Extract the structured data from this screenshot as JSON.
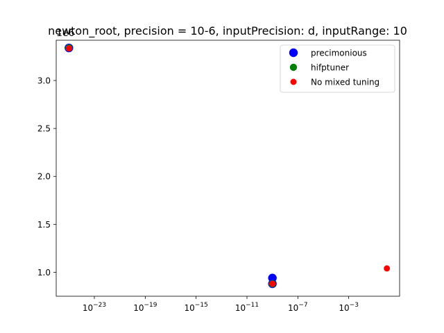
{
  "chart_data": {
    "type": "scatter",
    "title": "newton_root, precision = 10-6, inputPrecision: d, inputRange: 10",
    "xlabel": "",
    "ylabel": "",
    "x_scale": "log",
    "y_offset_label": "1e6",
    "xlim": [
      1e-26,
      10.0
    ],
    "ylim": [
      750000,
      3420000
    ],
    "x_ticks": [
      {
        "value": 1e-23,
        "base": "10",
        "exp": "−23"
      },
      {
        "value": 1e-19,
        "base": "10",
        "exp": "−19"
      },
      {
        "value": 1e-15,
        "base": "10",
        "exp": "−15"
      },
      {
        "value": 1e-11,
        "base": "10",
        "exp": "−11"
      },
      {
        "value": 1e-07,
        "base": "10",
        "exp": "−7"
      },
      {
        "value": 0.001,
        "base": "10",
        "exp": "−3"
      }
    ],
    "y_ticks": [
      {
        "value": 1000000,
        "label": "1.0"
      },
      {
        "value": 1500000,
        "label": "1.5"
      },
      {
        "value": 2000000,
        "label": "2.0"
      },
      {
        "value": 2500000,
        "label": "2.5"
      },
      {
        "value": 3000000,
        "label": "3.0"
      }
    ],
    "series": [
      {
        "name": "precimonious",
        "color": "#0000ff",
        "marker_size": 6.2,
        "points": [
          {
            "x": 1e-25,
            "y": 3340000
          },
          {
            "x": 1e-09,
            "y": 940000
          },
          {
            "x": 1e-09,
            "y": 880000
          }
        ]
      },
      {
        "name": "hifptuner",
        "color": "#008000",
        "marker_size": 5.2,
        "points": [
          {
            "x": 1e-25,
            "y": 3340000
          },
          {
            "x": 1e-09,
            "y": 880000
          }
        ]
      },
      {
        "name": "No mixed tuning",
        "color": "#ff0000",
        "marker_size": 4.5,
        "points": [
          {
            "x": 1e-25,
            "y": 3335000
          },
          {
            "x": 1e-09,
            "y": 880000
          },
          {
            "x": 1.0,
            "y": 1040000
          }
        ]
      }
    ],
    "legend": {
      "position": "top-right"
    },
    "grid": false
  }
}
